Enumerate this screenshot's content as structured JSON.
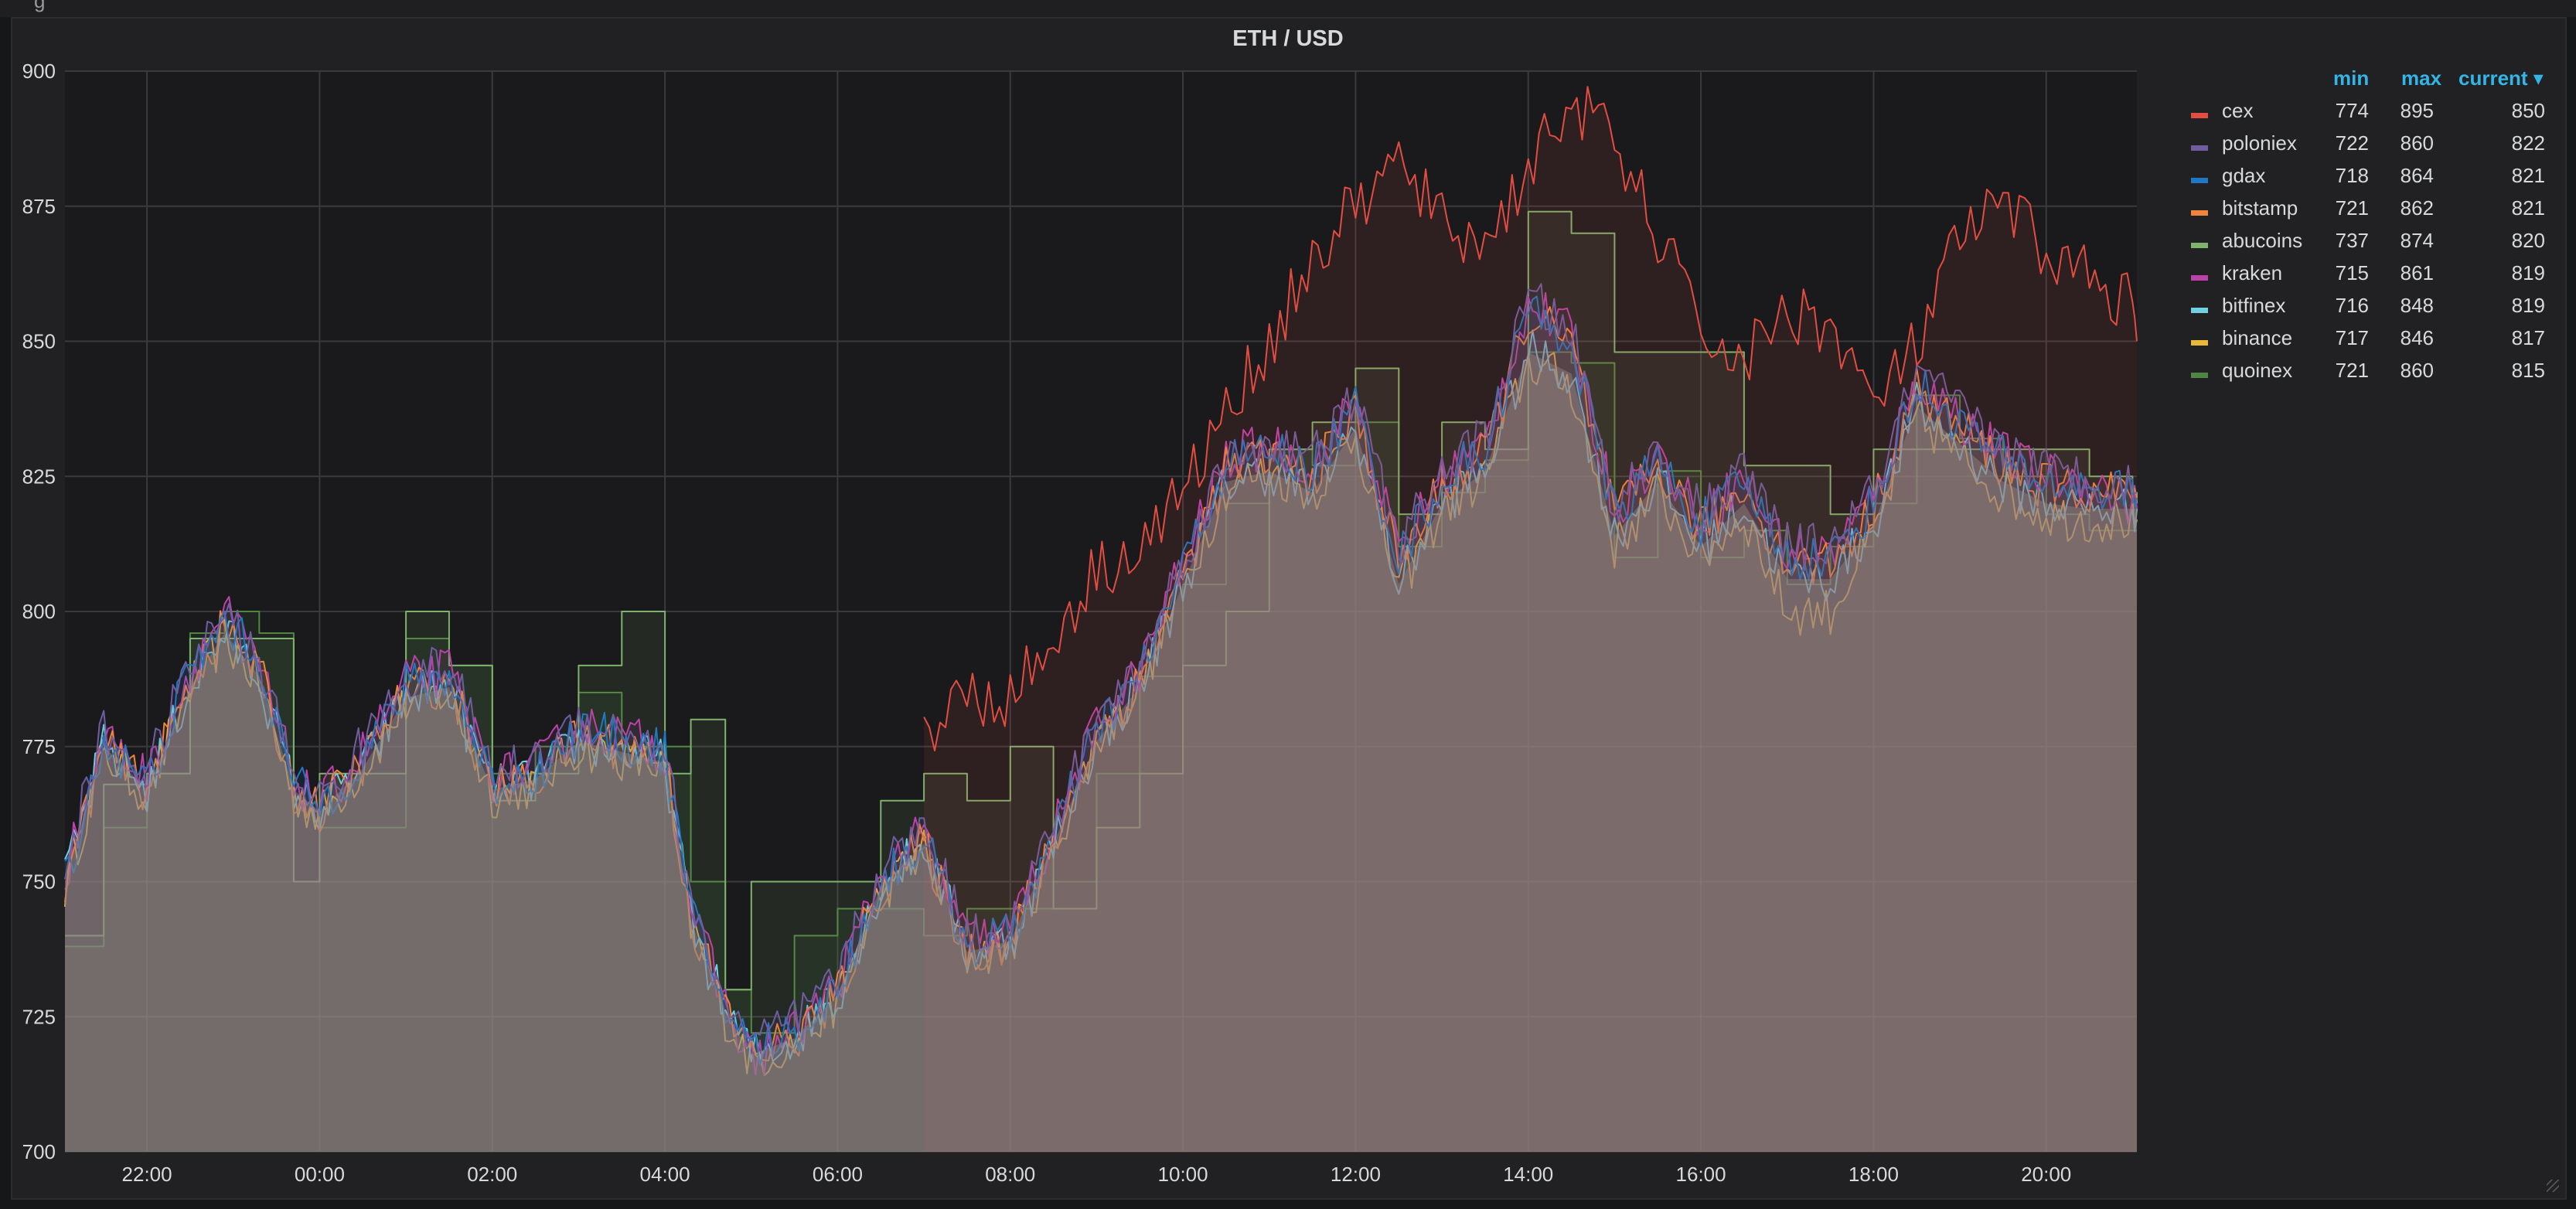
{
  "top_bar_fragment": "g",
  "panel": {
    "title": "ETH / USD"
  },
  "legend": {
    "headers": {
      "min": "min",
      "max": "max",
      "current": "current ▾"
    },
    "items": [
      {
        "name": "cex",
        "color": "#e24d42",
        "min": "774",
        "max": "895",
        "current": "850"
      },
      {
        "name": "poloniex",
        "color": "#705da0",
        "min": "722",
        "max": "860",
        "current": "822"
      },
      {
        "name": "gdax",
        "color": "#1f78c1",
        "min": "718",
        "max": "864",
        "current": "821"
      },
      {
        "name": "bitstamp",
        "color": "#ef843c",
        "min": "721",
        "max": "862",
        "current": "821"
      },
      {
        "name": "abucoins",
        "color": "#7eb26d",
        "min": "737",
        "max": "874",
        "current": "820"
      },
      {
        "name": "kraken",
        "color": "#ba43a9",
        "min": "715",
        "max": "861",
        "current": "819"
      },
      {
        "name": "bitfinex",
        "color": "#6ed0e0",
        "min": "716",
        "max": "848",
        "current": "819"
      },
      {
        "name": "binance",
        "color": "#eab839",
        "min": "717",
        "max": "846",
        "current": "817"
      },
      {
        "name": "quoinex",
        "color": "#508642",
        "min": "721",
        "max": "860",
        "current": "815"
      }
    ]
  },
  "chart_data": {
    "type": "area",
    "title": "ETH / USD",
    "xlabel": "",
    "ylabel": "",
    "ylim": [
      700,
      900
    ],
    "yticks": [
      700,
      725,
      750,
      775,
      800,
      825,
      850,
      875,
      900
    ],
    "xticks": [
      "22:00",
      "00:00",
      "02:00",
      "04:00",
      "06:00",
      "08:00",
      "10:00",
      "12:00",
      "14:00",
      "16:00",
      "18:00",
      "20:00"
    ],
    "grid": true,
    "legend_position": "right",
    "x_hours": [
      21.05,
      21.5,
      22,
      22.5,
      22.9,
      23.3,
      23.7,
      24,
      24.5,
      25,
      25.5,
      26,
      26.5,
      27,
      27.5,
      28,
      28.3,
      28.7,
      29,
      29.5,
      30,
      30.5,
      31,
      31.5,
      32,
      32.5,
      33,
      33.5,
      34,
      34.5,
      35,
      35.5,
      36,
      36.5,
      37,
      37.5,
      38,
      38.5,
      39,
      39.5,
      40,
      40.5,
      41,
      41.5,
      42,
      42.5,
      43,
      43.5,
      44,
      44.5,
      45,
      45.05
    ],
    "series": [
      {
        "name": "cex",
        "start_hour": 31.6,
        "values": [
          null,
          null,
          null,
          null,
          null,
          null,
          null,
          null,
          null,
          null,
          null,
          null,
          null,
          null,
          null,
          null,
          null,
          null,
          null,
          null,
          null,
          null,
          778,
          785,
          784,
          795,
          808,
          812,
          822,
          837,
          850,
          865,
          875,
          883,
          872,
          868,
          882,
          895,
          886,
          870,
          852,
          846,
          856,
          853,
          838,
          849,
          869,
          875,
          867,
          862,
          857,
          850
        ]
      },
      {
        "name": "poloniex",
        "values": [
          752,
          778,
          770,
          790,
          800,
          790,
          770,
          765,
          775,
          788,
          790,
          770,
          772,
          780,
          778,
          775,
          745,
          728,
          720,
          724,
          732,
          752,
          760,
          740,
          742,
          760,
          780,
          790,
          810,
          828,
          832,
          828,
          840,
          812,
          826,
          832,
          858,
          852,
          820,
          830,
          818,
          826,
          812,
          812,
          822,
          844,
          837,
          830,
          826,
          825,
          823,
          822
        ]
      },
      {
        "name": "gdax",
        "values": [
          750,
          776,
          768,
          789,
          798,
          791,
          768,
          764,
          773,
          786,
          788,
          768,
          770,
          778,
          776,
          774,
          744,
          727,
          719,
          722,
          730,
          750,
          758,
          738,
          740,
          758,
          778,
          788,
          808,
          827,
          830,
          826,
          838,
          810,
          824,
          830,
          856,
          850,
          818,
          828,
          816,
          824,
          810,
          810,
          820,
          842,
          835,
          828,
          824,
          823,
          822,
          821
        ]
      },
      {
        "name": "bitstamp",
        "values": [
          749,
          775,
          767,
          787,
          797,
          789,
          767,
          763,
          772,
          785,
          787,
          767,
          769,
          777,
          775,
          773,
          743,
          726,
          718,
          721,
          729,
          749,
          757,
          737,
          739,
          757,
          777,
          787,
          807,
          826,
          829,
          825,
          837,
          809,
          823,
          829,
          855,
          849,
          817,
          827,
          815,
          823,
          809,
          809,
          819,
          841,
          834,
          827,
          823,
          822,
          822,
          821
        ]
      },
      {
        "name": "abucoins",
        "values": [
          740,
          768,
          770,
          795,
          795,
          795,
          750,
          770,
          770,
          800,
          790,
          765,
          770,
          790,
          800,
          770,
          780,
          730,
          750,
          750,
          750,
          765,
          770,
          765,
          775,
          745,
          760,
          770,
          790,
          800,
          830,
          835,
          845,
          818,
          835,
          830,
          874,
          870,
          848,
          848,
          848,
          827,
          827,
          818,
          830,
          830,
          830,
          830,
          830,
          825,
          822,
          820
        ]
      },
      {
        "name": "kraken",
        "values": [
          751,
          777,
          769,
          789,
          800,
          790,
          769,
          764,
          774,
          787,
          789,
          769,
          771,
          779,
          777,
          774,
          745,
          727,
          717,
          722,
          731,
          751,
          759,
          739,
          741,
          759,
          779,
          789,
          809,
          828,
          831,
          827,
          839,
          811,
          825,
          831,
          857,
          851,
          819,
          829,
          817,
          825,
          811,
          811,
          821,
          843,
          836,
          829,
          825,
          824,
          820,
          819
        ]
      },
      {
        "name": "bitfinex",
        "values": [
          750,
          775,
          767,
          786,
          796,
          788,
          767,
          763,
          771,
          784,
          786,
          767,
          769,
          776,
          774,
          772,
          743,
          726,
          718,
          721,
          729,
          749,
          757,
          737,
          739,
          757,
          776,
          786,
          805,
          824,
          826,
          822,
          834,
          805,
          820,
          826,
          848,
          844,
          814,
          824,
          812,
          820,
          806,
          806,
          816,
          838,
          831,
          824,
          820,
          819,
          819,
          819
        ]
      },
      {
        "name": "binance",
        "values": [
          749,
          774,
          766,
          786,
          795,
          787,
          766,
          762,
          771,
          783,
          785,
          766,
          768,
          775,
          773,
          771,
          742,
          725,
          717,
          720,
          728,
          748,
          756,
          736,
          738,
          756,
          776,
          786,
          805,
          823,
          826,
          822,
          833,
          804,
          819,
          825,
          846,
          842,
          812,
          822,
          810,
          818,
          800,
          800,
          814,
          836,
          829,
          822,
          818,
          817,
          817,
          817
        ]
      },
      {
        "name": "quoinex",
        "values": [
          738,
          760,
          770,
          796,
          800,
          796,
          750,
          760,
          760,
          795,
          790,
          770,
          775,
          785,
          775,
          775,
          750,
          730,
          722,
          740,
          745,
          745,
          740,
          745,
          745,
          750,
          770,
          788,
          805,
          820,
          830,
          827,
          835,
          812,
          822,
          828,
          848,
          846,
          810,
          826,
          810,
          815,
          805,
          812,
          820,
          840,
          832,
          825,
          818,
          815,
          815,
          815
        ]
      }
    ]
  }
}
